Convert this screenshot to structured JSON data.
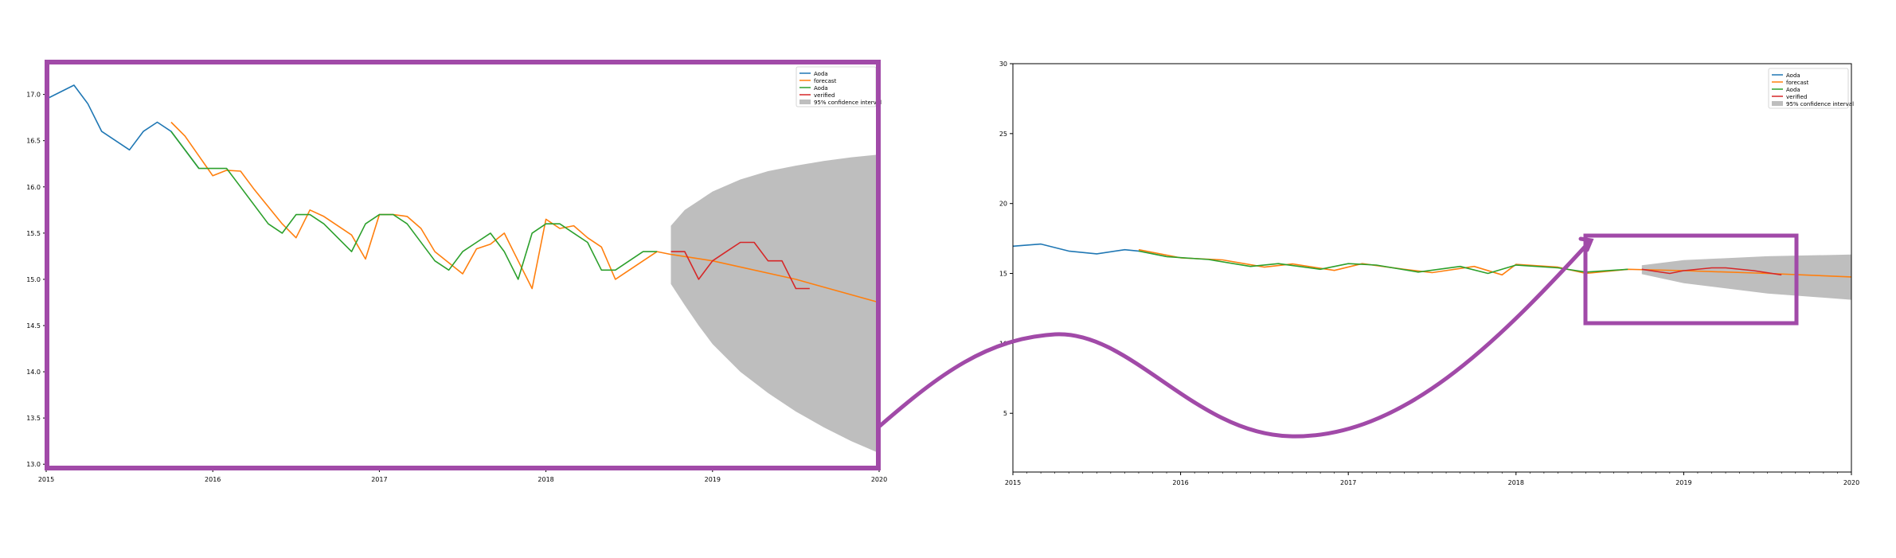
{
  "colors": {
    "blue": "#1f77b4",
    "orange": "#ff7f0e",
    "green": "#2ca02c",
    "red": "#d62728",
    "ci": "#bebebe",
    "highlight": "#a14aa8"
  },
  "chart_data": [
    {
      "type": "line",
      "view": "zoomed",
      "xlim": [
        2015,
        2020
      ],
      "ylim": [
        12.95,
        17.35
      ],
      "xticks": [
        "2015",
        "2016",
        "2017",
        "2018",
        "2019",
        "2020"
      ],
      "yticks": [
        "13.0",
        "13.5",
        "14.0",
        "14.5",
        "15.0",
        "15.5",
        "16.0",
        "16.5",
        "17.0"
      ],
      "legend_position": "top-right",
      "legend": [
        "Aoda",
        "forecast",
        "Aoda",
        "verified",
        "95% confidence interval"
      ],
      "series": [
        {
          "name": "Aoda",
          "color": "blue",
          "x": [
            2015.0,
            2015.167,
            2015.25,
            2015.333,
            2015.5,
            2015.583,
            2015.667,
            2015.75,
            2015.917
          ],
          "y": [
            16.95,
            17.1,
            16.9,
            16.6,
            16.4,
            16.6,
            16.7,
            16.6,
            16.2
          ]
        },
        {
          "name": "forecast",
          "color": "orange",
          "x": [
            2015.75,
            2015.833,
            2016.0,
            2016.083,
            2016.167,
            2016.25,
            2016.417,
            2016.5,
            2016.583,
            2016.667,
            2016.833,
            2016.917,
            2017.0,
            2017.083,
            2017.167,
            2017.25,
            2017.333,
            2017.5,
            2017.583,
            2017.667,
            2017.75,
            2017.833,
            2017.917,
            2018.0,
            2018.083,
            2018.167,
            2018.25,
            2018.333,
            2018.417,
            2018.5,
            2018.583,
            2018.667,
            2018.75,
            2019.0,
            2019.5,
            2020.0
          ],
          "y": [
            16.7,
            16.55,
            16.12,
            16.18,
            16.17,
            15.97,
            15.6,
            15.45,
            15.75,
            15.68,
            15.48,
            15.22,
            15.7,
            15.7,
            15.68,
            15.55,
            15.3,
            15.06,
            15.33,
            15.38,
            15.5,
            15.2,
            14.9,
            15.65,
            15.55,
            15.58,
            15.45,
            15.35,
            15.0,
            15.1,
            15.2,
            15.3,
            15.27,
            15.2,
            15.0,
            14.75
          ]
        },
        {
          "name": "Aoda",
          "color": "green",
          "x": [
            2015.75,
            2015.917,
            2016.0,
            2016.083,
            2016.167,
            2016.333,
            2016.417,
            2016.5,
            2016.583,
            2016.667,
            2016.833,
            2016.917,
            2017.0,
            2017.083,
            2017.167,
            2017.333,
            2017.417,
            2017.5,
            2017.583,
            2017.667,
            2017.75,
            2017.833,
            2017.917,
            2018.0,
            2018.083,
            2018.167,
            2018.25,
            2018.333,
            2018.417,
            2018.5,
            2018.583,
            2018.667
          ],
          "y": [
            16.6,
            16.2,
            16.2,
            16.2,
            16.0,
            15.6,
            15.5,
            15.7,
            15.7,
            15.6,
            15.3,
            15.6,
            15.7,
            15.7,
            15.6,
            15.2,
            15.1,
            15.3,
            15.4,
            15.5,
            15.3,
            15.0,
            15.5,
            15.6,
            15.6,
            15.5,
            15.4,
            15.1,
            15.1,
            15.2,
            15.3,
            15.3
          ]
        },
        {
          "name": "verified",
          "color": "red",
          "x": [
            2018.75,
            2018.833,
            2018.917,
            2019.0,
            2019.083,
            2019.167,
            2019.25,
            2019.333,
            2019.417,
            2019.5,
            2019.583
          ],
          "y": [
            15.3,
            15.3,
            15.0,
            15.2,
            15.3,
            15.4,
            15.4,
            15.2,
            15.2,
            14.9,
            14.9
          ]
        }
      ],
      "confidence_band": {
        "x": [
          2018.75,
          2018.833,
          2018.917,
          2019.0,
          2019.167,
          2019.333,
          2019.5,
          2019.667,
          2019.833,
          2020.0
        ],
        "lower": [
          14.95,
          14.72,
          14.5,
          14.3,
          14.0,
          13.77,
          13.57,
          13.4,
          13.25,
          13.12
        ],
        "upper": [
          15.58,
          15.75,
          15.85,
          15.95,
          16.08,
          16.17,
          16.23,
          16.28,
          16.32,
          16.35
        ]
      }
    },
    {
      "type": "line",
      "view": "full",
      "xlim": [
        2015,
        2020
      ],
      "ylim": [
        0.8,
        30.0
      ],
      "xticks": [
        "2015",
        "2016",
        "2017",
        "2018",
        "2019",
        "2020"
      ],
      "yticks": [
        "5",
        "10",
        "15",
        "20",
        "25",
        "30"
      ],
      "legend_position": "top-right",
      "legend": [
        "Aoda",
        "forecast",
        "Aoda",
        "verified",
        "95% confidence interval"
      ],
      "series": [
        {
          "name": "Aoda",
          "color": "blue",
          "x": [
            2015.0,
            2015.167,
            2015.333,
            2015.5,
            2015.667,
            2015.75,
            2015.917
          ],
          "y": [
            16.95,
            17.1,
            16.6,
            16.4,
            16.7,
            16.6,
            16.2
          ]
        },
        {
          "name": "forecast",
          "color": "orange",
          "x": [
            2015.75,
            2016.0,
            2016.25,
            2016.5,
            2016.667,
            2016.917,
            2017.083,
            2017.333,
            2017.5,
            2017.75,
            2017.917,
            2018.0,
            2018.25,
            2018.417,
            2018.667,
            2019.0,
            2019.5,
            2020.0
          ],
          "y": [
            16.7,
            16.12,
            15.97,
            15.45,
            15.68,
            15.22,
            15.7,
            15.3,
            15.06,
            15.5,
            14.9,
            15.65,
            15.45,
            15.0,
            15.3,
            15.2,
            15.0,
            14.75
          ]
        },
        {
          "name": "Aoda",
          "color": "green",
          "x": [
            2015.75,
            2015.917,
            2016.167,
            2016.417,
            2016.583,
            2016.833,
            2017.0,
            2017.167,
            2017.417,
            2017.667,
            2017.833,
            2018.0,
            2018.25,
            2018.417,
            2018.667
          ],
          "y": [
            16.6,
            16.2,
            16.0,
            15.5,
            15.7,
            15.3,
            15.7,
            15.6,
            15.1,
            15.5,
            15.0,
            15.6,
            15.4,
            15.1,
            15.3
          ]
        },
        {
          "name": "verified",
          "color": "red",
          "x": [
            2018.75,
            2018.917,
            2019.0,
            2019.167,
            2019.25,
            2019.417,
            2019.583
          ],
          "y": [
            15.3,
            15.0,
            15.2,
            15.4,
            15.4,
            15.2,
            14.9
          ]
        }
      ],
      "confidence_band": {
        "x": [
          2018.75,
          2019.0,
          2019.5,
          2020.0
        ],
        "lower": [
          14.95,
          14.3,
          13.57,
          13.12
        ],
        "upper": [
          15.58,
          15.95,
          16.23,
          16.35
        ]
      }
    }
  ]
}
